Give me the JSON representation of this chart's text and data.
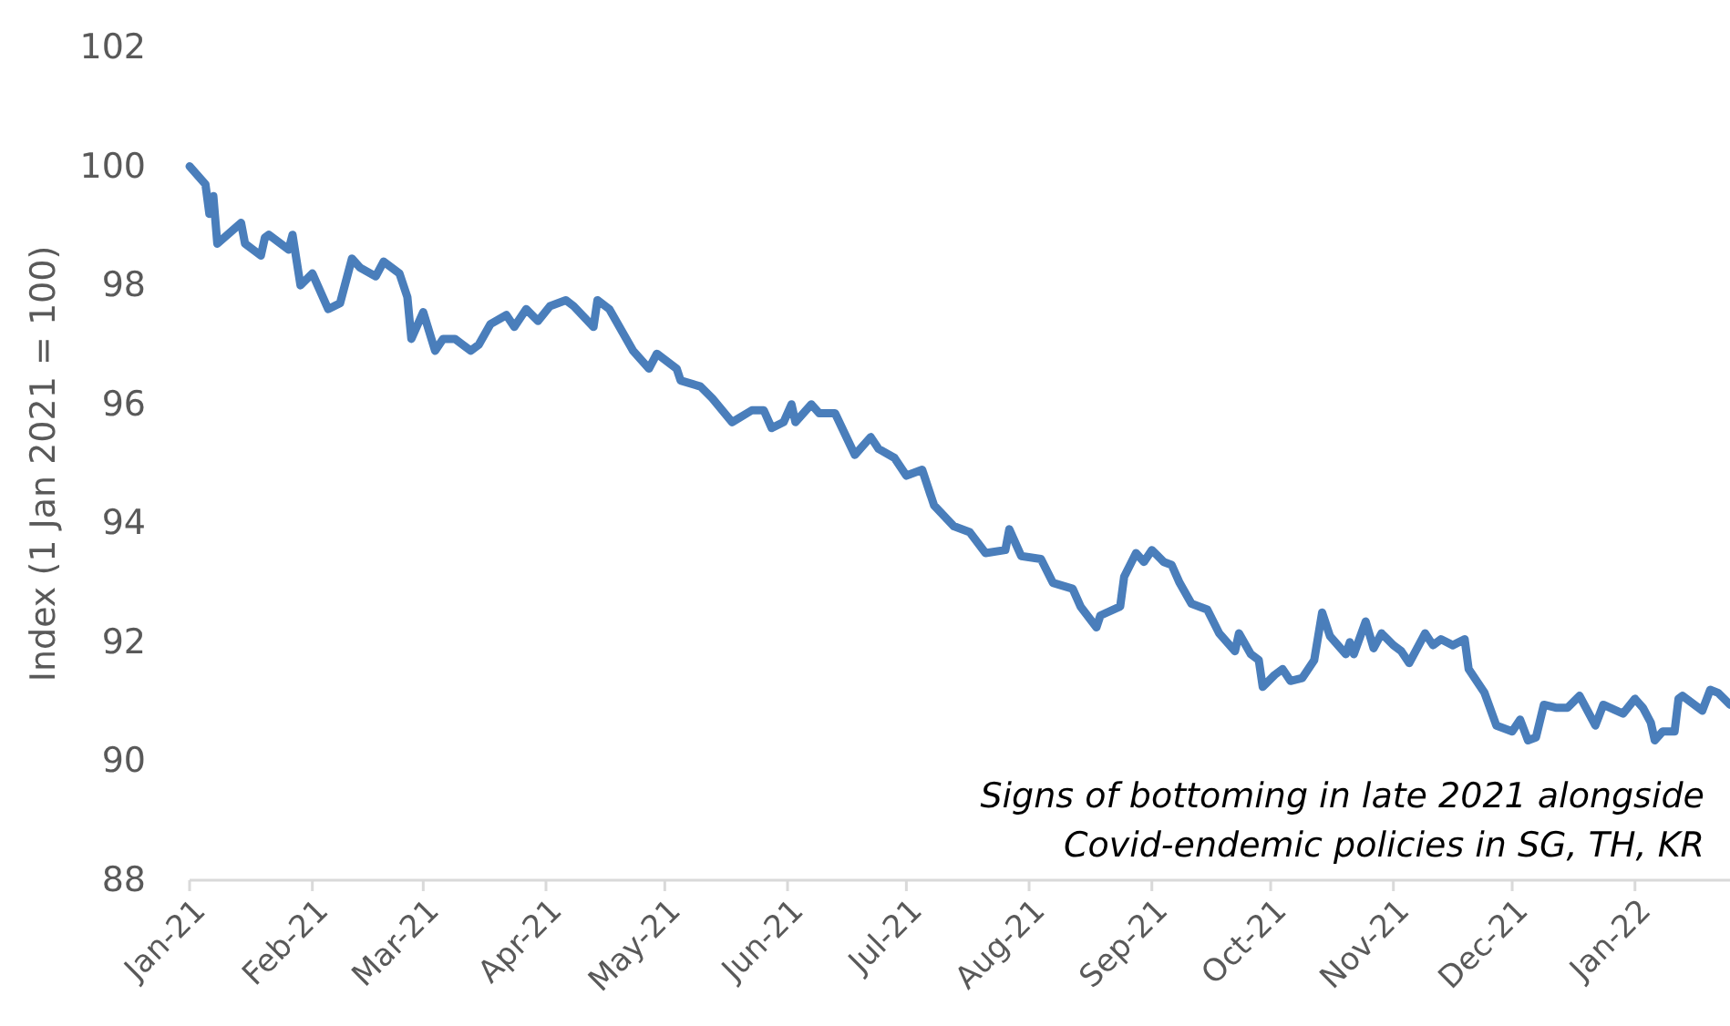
{
  "chart_data": {
    "type": "line",
    "ylabel": "Index (1 Jan 2021 = 100)",
    "annotations": [
      "Signs of bottoming in late 2021 alongside",
      "Covid-endemic policies in SG, TH, KR"
    ],
    "xlim": [
      "2021-01-01",
      "2022-01-25"
    ],
    "xticks": [
      {
        "value": "2021-01-01",
        "label": "Jan-21"
      },
      {
        "value": "2021-02-01",
        "label": "Feb-21"
      },
      {
        "value": "2021-03-01",
        "label": "Mar-21"
      },
      {
        "value": "2021-04-01",
        "label": "Apr-21"
      },
      {
        "value": "2021-05-01",
        "label": "May-21"
      },
      {
        "value": "2021-06-01",
        "label": "Jun-21"
      },
      {
        "value": "2021-07-01",
        "label": "Jul-21"
      },
      {
        "value": "2021-08-01",
        "label": "Aug-21"
      },
      {
        "value": "2021-09-01",
        "label": "Sep-21"
      },
      {
        "value": "2021-10-01",
        "label": "Oct-21"
      },
      {
        "value": "2021-11-01",
        "label": "Nov-21"
      },
      {
        "value": "2021-12-01",
        "label": "Dec-21"
      },
      {
        "value": "2022-01-01",
        "label": "Jan-22"
      }
    ],
    "ylim": [
      88,
      102
    ],
    "yticks": [
      88,
      90,
      92,
      94,
      96,
      98,
      100,
      102
    ],
    "grid": false,
    "marker": "none",
    "line_style": "solid",
    "x": [
      "2021-01-01",
      "2021-01-05",
      "2021-01-06",
      "2021-01-07",
      "2021-01-08",
      "2021-01-14",
      "2021-01-15",
      "2021-01-19",
      "2021-01-20",
      "2021-01-21",
      "2021-01-26",
      "2021-01-27",
      "2021-01-29",
      "2021-02-01",
      "2021-02-05",
      "2021-02-08",
      "2021-02-11",
      "2021-02-13",
      "2021-02-17",
      "2021-02-19",
      "2021-02-23",
      "2021-02-25",
      "2021-02-26",
      "2021-03-01",
      "2021-03-04",
      "2021-03-06",
      "2021-03-09",
      "2021-03-13",
      "2021-03-15",
      "2021-03-18",
      "2021-03-22",
      "2021-03-24",
      "2021-03-27",
      "2021-03-30",
      "2021-04-02",
      "2021-04-06",
      "2021-04-08",
      "2021-04-13",
      "2021-04-14",
      "2021-04-17",
      "2021-04-23",
      "2021-04-27",
      "2021-04-29",
      "2021-05-04",
      "2021-05-05",
      "2021-05-10",
      "2021-05-13",
      "2021-05-18",
      "2021-05-23",
      "2021-05-26",
      "2021-05-28",
      "2021-05-31",
      "2021-06-02",
      "2021-06-03",
      "2021-06-07",
      "2021-06-09",
      "2021-06-13",
      "2021-06-18",
      "2021-06-22",
      "2021-06-24",
      "2021-06-28",
      "2021-07-01",
      "2021-07-05",
      "2021-07-08",
      "2021-07-13",
      "2021-07-17",
      "2021-07-21",
      "2021-07-26",
      "2021-07-27",
      "2021-07-30",
      "2021-08-04",
      "2021-08-07",
      "2021-08-12",
      "2021-08-14",
      "2021-08-18",
      "2021-08-19",
      "2021-08-24",
      "2021-08-25",
      "2021-08-28",
      "2021-08-30",
      "2021-09-01",
      "2021-09-04",
      "2021-09-06",
      "2021-09-08",
      "2021-09-11",
      "2021-09-15",
      "2021-09-18",
      "2021-09-22",
      "2021-09-23",
      "2021-09-26",
      "2021-09-28",
      "2021-09-29",
      "2021-10-02",
      "2021-10-04",
      "2021-10-06",
      "2021-10-09",
      "2021-10-12",
      "2021-10-14",
      "2021-10-16",
      "2021-10-20",
      "2021-10-21",
      "2021-10-22",
      "2021-10-25",
      "2021-10-27",
      "2021-10-29",
      "2021-11-01",
      "2021-11-03",
      "2021-11-05",
      "2021-11-09",
      "2021-11-11",
      "2021-11-13",
      "2021-11-16",
      "2021-11-19",
      "2021-11-20",
      "2021-11-24",
      "2021-11-27",
      "2021-12-01",
      "2021-12-03",
      "2021-12-05",
      "2021-12-07",
      "2021-12-09",
      "2021-12-12",
      "2021-12-15",
      "2021-12-18",
      "2021-12-20",
      "2021-12-22",
      "2021-12-24",
      "2021-12-29",
      "2022-01-01",
      "2022-01-03",
      "2022-01-05",
      "2022-01-06",
      "2022-01-08",
      "2022-01-11",
      "2022-01-12",
      "2022-01-13",
      "2022-01-18",
      "2022-01-20",
      "2022-01-22",
      "2022-01-25"
    ],
    "series": [
      {
        "color": "#4a7ebb",
        "values": [
          100.0,
          99.7,
          99.2,
          99.5,
          98.7,
          99.05,
          98.7,
          98.5,
          98.8,
          98.85,
          98.6,
          98.85,
          98.0,
          98.2,
          97.6,
          97.7,
          98.45,
          98.3,
          98.15,
          98.4,
          98.2,
          97.8,
          97.1,
          97.55,
          96.9,
          97.1,
          97.1,
          96.9,
          97.0,
          97.35,
          97.5,
          97.3,
          97.6,
          97.4,
          97.65,
          97.75,
          97.65,
          97.3,
          97.75,
          97.6,
          96.9,
          96.6,
          96.85,
          96.6,
          96.4,
          96.3,
          96.1,
          95.7,
          95.9,
          95.9,
          95.6,
          95.7,
          96.0,
          95.7,
          96.0,
          95.85,
          95.85,
          95.15,
          95.45,
          95.25,
          95.1,
          94.8,
          94.9,
          94.3,
          93.95,
          93.85,
          93.5,
          93.55,
          93.9,
          93.45,
          93.4,
          93.0,
          92.9,
          92.6,
          92.25,
          92.45,
          92.6,
          93.1,
          93.5,
          93.35,
          93.55,
          93.35,
          93.3,
          93.0,
          92.65,
          92.55,
          92.15,
          91.85,
          92.15,
          91.8,
          91.7,
          91.25,
          91.45,
          91.55,
          91.35,
          91.4,
          91.7,
          92.5,
          92.1,
          91.8,
          92.0,
          91.8,
          92.35,
          91.9,
          92.15,
          91.95,
          91.85,
          91.65,
          92.15,
          91.95,
          92.05,
          91.95,
          92.05,
          91.55,
          91.15,
          90.6,
          90.5,
          90.7,
          90.35,
          90.4,
          90.95,
          90.9,
          90.9,
          91.1,
          90.85,
          90.6,
          90.95,
          90.8,
          91.05,
          90.9,
          90.65,
          90.35,
          90.5,
          90.5,
          91.05,
          91.1,
          90.85,
          91.2,
          91.15,
          90.95
        ]
      }
    ]
  }
}
